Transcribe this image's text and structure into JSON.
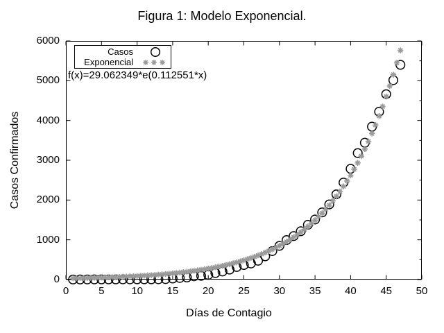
{
  "title": "Figura 1: Modelo Exponencial.",
  "fit_annotation": "f(x)=29.062349*e(0.112551*x)",
  "colors": {
    "foreground": "#000000",
    "background": "#ffffff",
    "casos_marker": "#000000",
    "exponencial_marker": "#9a9a9a"
  },
  "legend": {
    "position": "top-left",
    "items": [
      {
        "label": "Casos",
        "marker": "open-circle",
        "color": "#000000"
      },
      {
        "label": "Exponencial",
        "marker": "asterisk",
        "color": "#9a9a9a"
      }
    ]
  },
  "chart_data": {
    "type": "scatter",
    "title": "Figura 1: Modelo Exponencial.",
    "xlabel": "Días de Contagio",
    "ylabel": "Casos Confirmados",
    "xlim": [
      0,
      50
    ],
    "ylim": [
      0,
      6000
    ],
    "x_ticks": [
      0,
      5,
      10,
      15,
      20,
      25,
      30,
      35,
      40,
      45,
      50
    ],
    "y_ticks": [
      0,
      1000,
      2000,
      3000,
      4000,
      5000,
      6000
    ],
    "grid": false,
    "tick_style": "inward-mirrored",
    "series": [
      {
        "name": "Casos",
        "type": "points",
        "marker": "open-circle",
        "color": "#000000",
        "x": [
          1,
          2,
          3,
          4,
          5,
          6,
          7,
          8,
          9,
          10,
          11,
          12,
          13,
          14,
          15,
          16,
          17,
          18,
          19,
          20,
          21,
          22,
          23,
          24,
          25,
          26,
          27,
          28,
          29,
          30,
          31,
          32,
          33,
          34,
          35,
          36,
          37,
          38,
          39,
          40,
          41,
          42,
          43,
          44,
          45,
          46,
          47
        ],
        "y": [
          2,
          3,
          4,
          5,
          5,
          5,
          5,
          6,
          6,
          7,
          7,
          7,
          8,
          12,
          26,
          41,
          53,
          82,
          93,
          118,
          164,
          203,
          251,
          316,
          367,
          405,
          475,
          585,
          717,
          848,
          993,
          1094,
          1215,
          1378,
          1510,
          1688,
          1890,
          2143,
          2439,
          2785,
          3181,
          3441,
          3844,
          4219,
          4661,
          5014,
          5399
        ]
      },
      {
        "name": "Exponencial",
        "type": "function-samples",
        "marker": "asterisk",
        "color": "#9a9a9a",
        "function": "f(x)=29.062349*e(0.112551*x)",
        "params": {
          "a": 29.062349,
          "b": 0.112551
        },
        "sample": {
          "start": 1,
          "end": 47,
          "step": 0.5
        }
      }
    ]
  }
}
